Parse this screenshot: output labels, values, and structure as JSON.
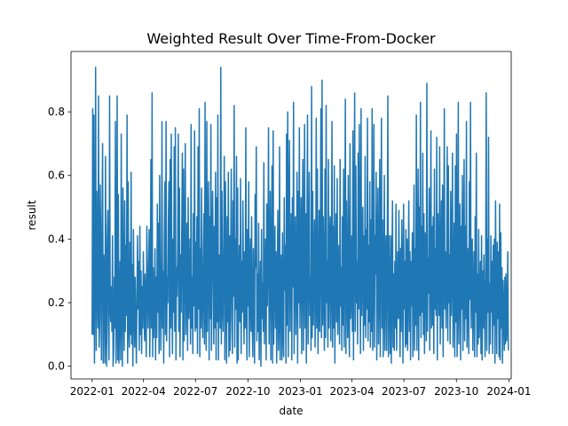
{
  "chart_data": {
    "type": "line",
    "title": "Weighted Result Over Time-From-Docker",
    "xlabel": "date",
    "ylabel": "result",
    "xlim": [
      "2021-11-25",
      "2024-01-05"
    ],
    "ylim": [
      -0.04,
      0.99
    ],
    "x_ticks": [
      "2022-01",
      "2022-04",
      "2022-07",
      "2022-10",
      "2023-01",
      "2023-04",
      "2023-07",
      "2023-10",
      "2024-01"
    ],
    "y_ticks": [
      "0.0",
      "0.2",
      "0.4",
      "0.6",
      "0.8"
    ],
    "grid": false,
    "series": [
      {
        "color": "#1f77b4",
        "x_start": "2022-01-01",
        "x_end": "2023-12-31",
        "frequency": "daily",
        "values": [
          0.1,
          0.81,
          0.1,
          0.79,
          0.01,
          0.3,
          0.94,
          0.05,
          0.55,
          0.23,
          0.12,
          0.85,
          0.06,
          0.14,
          0.57,
          0.33,
          0.02,
          0.45,
          0.7,
          0.01,
          0.35,
          0.27,
          0.01,
          0.66,
          0.12,
          0.0,
          0.4,
          0.49,
          0.14,
          0.02,
          0.85,
          0.19,
          0.14,
          0.25,
          0.11,
          0.41,
          0.0,
          0.05,
          0.28,
          0.12,
          0.77,
          0.01,
          0.17,
          0.85,
          0.02,
          0.54,
          0.01,
          0.19,
          0.33,
          0.02,
          0.73,
          0.16,
          0.0,
          0.56,
          0.2,
          0.05,
          0.52,
          0.11,
          0.38,
          0.16,
          0.79,
          0.01,
          0.58,
          0.12,
          0.06,
          0.39,
          0.1,
          0.61,
          0.07,
          0.32,
          0.0,
          0.43,
          0.19,
          0.06,
          0.28,
          0.14,
          0.01,
          0.21,
          0.41,
          0.18,
          0.33,
          0.05,
          0.44,
          0.1,
          0.3,
          0.04,
          0.25,
          0.12,
          0.36,
          0.21,
          0.08,
          0.29,
          0.17,
          0.03,
          0.44,
          0.3,
          0.12,
          0.26,
          0.43,
          0.03,
          0.23,
          0.65,
          0.12,
          0.86,
          0.03,
          0.31,
          0.09,
          0.19,
          0.37,
          0.02,
          0.28,
          0.09,
          0.51,
          0.17,
          0.45,
          0.04,
          0.6,
          0.27,
          0.05,
          0.22,
          0.77,
          0.12,
          0.3,
          0.01,
          0.4,
          0.58,
          0.1,
          0.77,
          0.08,
          0.28,
          0.2,
          0.46,
          0.58,
          0.03,
          0.65,
          0.12,
          0.73,
          0.25,
          0.04,
          0.4,
          0.17,
          0.69,
          0.11,
          0.75,
          0.02,
          0.31,
          0.22,
          0.38,
          0.73,
          0.11,
          0.56,
          0.03,
          0.35,
          0.17,
          0.43,
          0.67,
          0.02,
          0.62,
          0.08,
          0.33,
          0.7,
          0.1,
          0.25,
          0.45,
          0.05,
          0.53,
          0.15,
          0.21,
          0.4,
          0.07,
          0.76,
          0.12,
          0.28,
          0.04,
          0.48,
          0.19,
          0.74,
          0.11,
          0.39,
          0.12,
          0.47,
          0.04,
          0.69,
          0.18,
          0.81,
          0.03,
          0.37,
          0.12,
          0.56,
          0.21,
          0.09,
          0.31,
          0.48,
          0.07,
          0.83,
          0.18,
          0.05,
          0.77,
          0.11,
          0.34,
          0.58,
          0.02,
          0.47,
          0.15,
          0.76,
          0.05,
          0.29,
          0.55,
          0.34,
          0.07,
          0.44,
          0.12,
          0.61,
          0.02,
          0.53,
          0.14,
          0.79,
          0.02,
          0.35,
          0.26,
          0.12,
          0.94,
          0.07,
          0.55,
          0.21,
          0.11,
          0.37,
          0.66,
          0.02,
          0.58,
          0.28,
          0.01,
          0.47,
          0.14,
          0.61,
          0.03,
          0.41,
          0.05,
          0.33,
          0.62,
          0.15,
          0.04,
          0.52,
          0.22,
          0.82,
          0.06,
          0.4,
          0.18,
          0.66,
          0.01,
          0.56,
          0.02,
          0.25,
          0.38,
          0.14,
          0.59,
          0.04,
          0.33,
          0.17,
          0.52,
          0.25,
          0.07,
          0.36,
          0.12,
          0.75,
          0.21,
          0.02,
          0.43,
          0.19,
          0.58,
          0.03,
          0.29,
          0.4,
          0.11,
          0.47,
          0.14,
          0.03,
          0.37,
          0.22,
          0.01,
          0.54,
          0.31,
          0.69,
          0.08,
          0.29,
          0.11,
          0.45,
          0.02,
          0.21,
          0.33,
          0.0,
          0.43,
          0.15,
          0.26,
          0.11,
          0.64,
          0.07,
          0.24,
          0.4,
          0.02,
          0.51,
          0.19,
          0.35,
          0.75,
          0.07,
          0.34,
          0.55,
          0.02,
          0.28,
          0.63,
          0.01,
          0.74,
          0.07,
          0.29,
          0.44,
          0.12,
          0.36,
          0.01,
          0.25,
          0.49,
          0.05,
          0.15,
          0.69,
          0.02,
          0.26,
          0.35,
          0.02,
          0.42,
          0.11,
          0.03,
          0.53,
          0.24,
          0.38,
          0.01,
          0.73,
          0.13,
          0.8,
          0.03,
          0.43,
          0.71,
          0.11,
          0.33,
          0.48,
          0.02,
          0.53,
          0.25,
          0.83,
          0.04,
          0.35,
          0.47,
          0.1,
          0.25,
          0.61,
          0.01,
          0.55,
          0.2,
          0.75,
          0.12,
          0.31,
          0.53,
          0.04,
          0.42,
          0.65,
          0.05,
          0.33,
          0.76,
          0.12,
          0.48,
          0.01,
          0.41,
          0.79,
          0.07,
          0.32,
          0.61,
          0.16,
          0.28,
          0.05,
          0.88,
          0.09,
          0.55,
          0.13,
          0.33,
          0.46,
          0.06,
          0.22,
          0.78,
          0.12,
          0.62,
          0.04,
          0.2,
          0.49,
          0.11,
          0.37,
          0.81,
          0.09,
          0.9,
          0.13,
          0.47,
          0.25,
          0.05,
          0.62,
          0.09,
          0.82,
          0.2,
          0.33,
          0.06,
          0.65,
          0.12,
          0.37,
          0.47,
          0.08,
          0.28,
          0.77,
          0.06,
          0.44,
          0.12,
          0.63,
          0.01,
          0.31,
          0.48,
          0.14,
          0.59,
          0.1,
          0.25,
          0.38,
          0.07,
          0.65,
          0.19,
          0.31,
          0.05,
          0.47,
          0.13,
          0.62,
          0.06,
          0.35,
          0.84,
          0.04,
          0.52,
          0.27,
          0.09,
          0.6,
          0.16,
          0.03,
          0.7,
          0.15,
          0.22,
          0.41,
          0.11,
          0.74,
          0.02,
          0.44,
          0.86,
          0.11,
          0.63,
          0.2,
          0.33,
          0.07,
          0.67,
          0.18,
          0.76,
          0.35,
          0.04,
          0.81,
          0.16,
          0.34,
          0.5,
          0.05,
          0.41,
          0.13,
          0.66,
          0.09,
          0.43,
          0.18,
          0.78,
          0.08,
          0.38,
          0.14,
          0.58,
          0.06,
          0.46,
          0.11,
          0.81,
          0.05,
          0.3,
          0.76,
          0.06,
          0.41,
          0.29,
          0.61,
          0.02,
          0.37,
          0.56,
          0.07,
          0.25,
          0.65,
          0.03,
          0.35,
          0.78,
          0.12,
          0.46,
          0.03,
          0.24,
          0.6,
          0.05,
          0.32,
          0.41,
          0.05,
          0.35,
          0.85,
          0.03,
          0.41,
          0.24,
          0.04,
          0.41,
          0.01,
          0.3,
          0.52,
          0.06,
          0.29,
          0.05,
          0.33,
          0.12,
          0.51,
          0.05,
          0.2,
          0.36,
          0.15,
          0.49,
          0.23,
          0.03,
          0.37,
          0.11,
          0.46,
          0.29,
          0.01,
          0.51,
          0.18,
          0.33,
          0.06,
          0.43,
          0.07,
          0.4,
          0.05,
          0.28,
          0.52,
          0.11,
          0.36,
          0.02,
          0.33,
          0.19,
          0.42,
          0.03,
          0.3,
          0.57,
          0.05,
          0.37,
          0.13,
          0.79,
          0.05,
          0.26,
          0.62,
          0.02,
          0.5,
          0.16,
          0.83,
          0.09,
          0.44,
          0.17,
          0.67,
          0.1,
          0.48,
          0.04,
          0.42,
          0.31,
          0.08,
          0.89,
          0.11,
          0.34,
          0.23,
          0.56,
          0.05,
          0.29,
          0.74,
          0.12,
          0.44,
          0.13,
          0.47,
          0.04,
          0.62,
          0.18,
          0.37,
          0.16,
          0.72,
          0.02,
          0.48,
          0.31,
          0.16,
          0.69,
          0.07,
          0.3,
          0.52,
          0.12,
          0.57,
          0.03,
          0.34,
          0.81,
          0.18,
          0.36,
          0.12,
          0.27,
          0.69,
          0.08,
          0.63,
          0.2,
          0.35,
          0.07,
          0.55,
          0.16,
          0.32,
          0.67,
          0.06,
          0.24,
          0.45,
          0.03,
          0.63,
          0.14,
          0.73,
          0.03,
          0.22,
          0.83,
          0.07,
          0.33,
          0.51,
          0.02,
          0.44,
          0.18,
          0.6,
          0.05,
          0.28,
          0.65,
          0.08,
          0.44,
          0.15,
          0.77,
          0.06,
          0.22,
          0.37,
          0.04,
          0.58,
          0.21,
          0.83,
          0.12,
          0.31,
          0.4,
          0.05,
          0.23,
          0.36,
          0.03,
          0.47,
          0.17,
          0.67,
          0.03,
          0.29,
          0.07,
          0.43,
          0.09,
          0.19,
          0.33,
          0.04,
          0.41,
          0.02,
          0.3,
          0.12,
          0.35,
          0.2,
          0.03,
          0.28,
          0.86,
          0.05,
          0.4,
          0.17,
          0.72,
          0.04,
          0.26,
          0.07,
          0.41,
          0.17,
          0.33,
          0.04,
          0.38,
          0.13,
          0.4,
          0.01,
          0.52,
          0.25,
          0.04,
          0.39,
          0.15,
          0.36,
          0.03,
          0.51,
          0.02,
          0.42,
          0.12,
          0.31,
          0.01,
          0.27,
          0.18,
          0.05,
          0.28,
          0.07,
          0.29,
          0.08,
          0.11,
          0.36,
          0.05
        ]
      }
    ]
  }
}
